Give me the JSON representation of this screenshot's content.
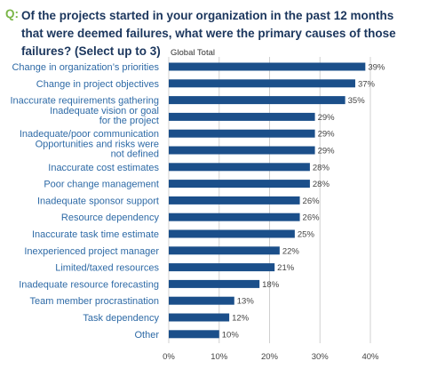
{
  "question": {
    "prefix": "Q:",
    "text": "Of the projects started in your organization in the past 12 months that were deemed failures, what were the primary causes of those failures? (Select up to 3)"
  },
  "colors": {
    "prefix": "#7ab648",
    "title": "#1b365d",
    "bar": "#1b4f8a",
    "category_text": "#2e6aa6",
    "grid": "#d0d0d0"
  },
  "chart_data": {
    "type": "bar",
    "orientation": "horizontal",
    "series": [
      {
        "name": "Global Total",
        "values": [
          39,
          37,
          35,
          29,
          29,
          29,
          28,
          28,
          26,
          26,
          25,
          22,
          21,
          18,
          13,
          12,
          10
        ]
      }
    ],
    "categories": [
      [
        "Change in organization’s priorities"
      ],
      [
        "Change in project objectives"
      ],
      [
        "Inaccurate requirements gathering"
      ],
      [
        "Inadequate vision or goal",
        "for the project"
      ],
      [
        "Inadequate/poor communication"
      ],
      [
        "Opportunities and risks were",
        "not defined"
      ],
      [
        "Inaccurate cost estimates"
      ],
      [
        "Poor change management"
      ],
      [
        "Inadequate sponsor support"
      ],
      [
        "Resource dependency"
      ],
      [
        "Inaccurate task time estimate"
      ],
      [
        "Inexperienced project manager"
      ],
      [
        "Limited/taxed resources"
      ],
      [
        "Inadequate resource forecasting"
      ],
      [
        "Team member procrastination"
      ],
      [
        "Task dependency"
      ],
      [
        "Other"
      ]
    ],
    "value_labels": [
      "39%",
      "37%",
      "35%",
      "29%",
      "29%",
      "29%",
      "28%",
      "28%",
      "26%",
      "26%",
      "25%",
      "22%",
      "21%",
      "18%",
      "13%",
      "12%",
      "10%"
    ],
    "xlim": [
      0,
      40
    ],
    "xticks": [
      0,
      10,
      20,
      30,
      40
    ],
    "xtick_labels": [
      "0%",
      "10%",
      "20%",
      "30%",
      "40%"
    ],
    "grid": "vertical",
    "legend": "top-left of plot"
  }
}
